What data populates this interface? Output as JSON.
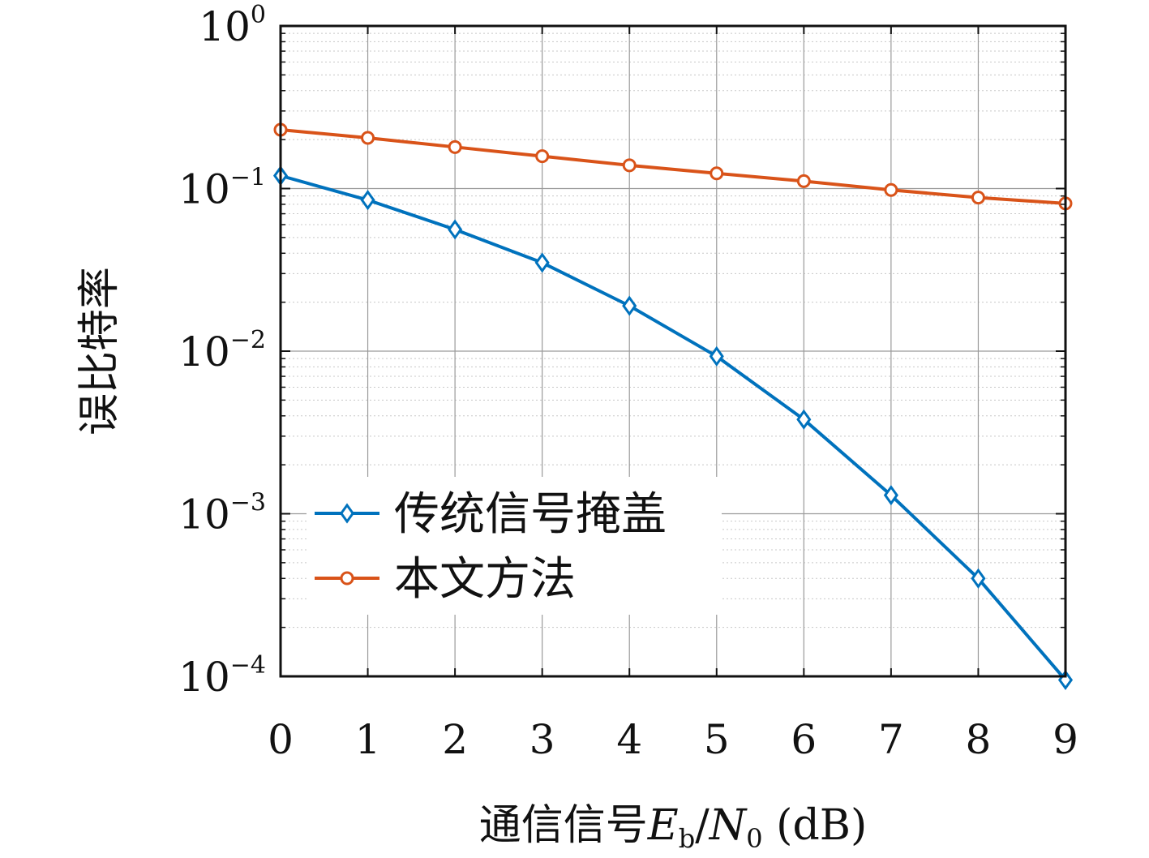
{
  "chart_data": {
    "type": "line",
    "title": "",
    "xlabel": "通信信号Eb/N0 (dB)",
    "xlabel_parts": {
      "prefix": "通信信号",
      "E": "E",
      "E_sub": "b",
      "slash": "/",
      "N": "N",
      "N_sub": "0",
      "unit": " (dB)"
    },
    "ylabel": "误比特率",
    "x": [
      0,
      1,
      2,
      3,
      4,
      5,
      6,
      7,
      8,
      9
    ],
    "xlim": [
      0,
      9
    ],
    "ylim": [
      0.0001,
      1
    ],
    "yscale": "log",
    "grid": true,
    "x_tick_labels": [
      "0",
      "1",
      "2",
      "3",
      "4",
      "5",
      "6",
      "7",
      "8",
      "9"
    ],
    "y_ticks": [
      {
        "base": "10",
        "exp": "0",
        "value": 1
      },
      {
        "base": "10",
        "exp": "−1",
        "value": 0.1
      },
      {
        "base": "10",
        "exp": "−2",
        "value": 0.01
      },
      {
        "base": "10",
        "exp": "−3",
        "value": 0.001
      },
      {
        "base": "10",
        "exp": "−4",
        "value": 0.0001
      }
    ],
    "legend_position": "lower-left",
    "series": [
      {
        "name": "传统信号掩盖",
        "color": "#0072BD",
        "marker": "diamond",
        "values": [
          0.12,
          0.085,
          0.056,
          0.035,
          0.019,
          0.0093,
          0.0038,
          0.0013,
          0.0004,
          9.5e-05
        ]
      },
      {
        "name": "本文方法",
        "color": "#D95319",
        "marker": "circle",
        "values": [
          0.23,
          0.205,
          0.18,
          0.158,
          0.139,
          0.124,
          0.111,
          0.098,
          0.088,
          0.081
        ]
      }
    ]
  }
}
